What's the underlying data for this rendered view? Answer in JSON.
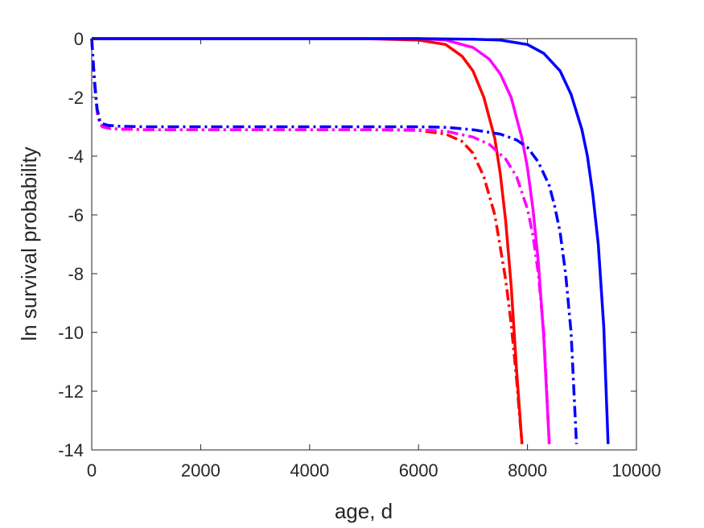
{
  "chart_data": {
    "type": "line",
    "title": "",
    "xlabel": "age, d",
    "ylabel": "ln survival probability",
    "xlim": [
      0,
      10000
    ],
    "ylim": [
      -14,
      0
    ],
    "xticks": [
      0,
      2000,
      4000,
      6000,
      8000,
      10000
    ],
    "xtick_labels": [
      "0",
      "2000",
      "4000",
      "6000",
      "8000",
      "10000"
    ],
    "yticks": [
      0,
      -2,
      -4,
      -6,
      -8,
      -10,
      -12,
      -14
    ],
    "ytick_labels": [
      "0",
      "-2",
      "-4",
      "-6",
      "-8",
      "-10",
      "-12",
      "-14"
    ],
    "grid": false,
    "legend": "none",
    "series": [
      {
        "color": "#ff0000",
        "style": "solid",
        "x": [
          0,
          1000,
          2000,
          3000,
          4000,
          5000,
          6000,
          6500,
          6800,
          7000,
          7200,
          7400,
          7500,
          7600,
          7700,
          7800,
          7900
        ],
        "y": [
          0,
          0,
          0,
          0,
          0,
          0,
          -0.05,
          -0.2,
          -0.6,
          -1.1,
          -2.0,
          -3.4,
          -4.6,
          -6.2,
          -8.4,
          -11.3,
          -13.8
        ]
      },
      {
        "color": "#ff00ff",
        "style": "solid",
        "x": [
          0,
          1000,
          2000,
          3000,
          4000,
          5000,
          6000,
          6500,
          7000,
          7300,
          7500,
          7700,
          7900,
          8000,
          8100,
          8200,
          8300,
          8400
        ],
        "y": [
          0,
          0,
          0,
          0,
          0,
          0,
          0,
          -0.05,
          -0.3,
          -0.7,
          -1.2,
          -2.0,
          -3.4,
          -4.4,
          -5.8,
          -7.6,
          -10.2,
          -13.8
        ]
      },
      {
        "color": "#0000ff",
        "style": "solid",
        "x": [
          0,
          1000,
          2000,
          3000,
          4000,
          5000,
          6000,
          7000,
          7500,
          8000,
          8300,
          8600,
          8800,
          9000,
          9100,
          9200,
          9300,
          9400,
          9480
        ],
        "y": [
          0,
          0,
          0,
          0,
          0,
          0,
          0,
          -0.02,
          -0.05,
          -0.2,
          -0.5,
          -1.1,
          -1.9,
          -3.1,
          -4.0,
          -5.3,
          -7.0,
          -9.8,
          -13.8
        ]
      },
      {
        "color": "#ff0000",
        "style": "dashdot",
        "x": [
          0,
          20,
          50,
          100,
          150,
          200,
          300,
          500,
          1000,
          2000,
          3000,
          4000,
          5000,
          6000,
          6500,
          6800,
          7000,
          7200,
          7400,
          7600,
          7700,
          7800,
          7850,
          7900
        ],
        "y": [
          0,
          -0.6,
          -1.5,
          -2.5,
          -2.9,
          -3.0,
          -3.05,
          -3.08,
          -3.1,
          -3.1,
          -3.1,
          -3.1,
          -3.1,
          -3.12,
          -3.25,
          -3.5,
          -3.9,
          -4.7,
          -6.0,
          -8.2,
          -9.7,
          -11.6,
          -12.7,
          -13.8
        ]
      },
      {
        "color": "#ff00ff",
        "style": "dashdot",
        "x": [
          0,
          20,
          50,
          100,
          150,
          200,
          300,
          500,
          1000,
          2000,
          3000,
          4000,
          5000,
          6000,
          6500,
          7000,
          7300,
          7600,
          7800,
          8000,
          8100,
          8200,
          8300,
          8400
        ],
        "y": [
          0,
          -0.6,
          -1.5,
          -2.5,
          -2.9,
          -3.0,
          -3.05,
          -3.08,
          -3.1,
          -3.1,
          -3.1,
          -3.1,
          -3.1,
          -3.1,
          -3.15,
          -3.35,
          -3.6,
          -4.1,
          -4.7,
          -5.8,
          -6.7,
          -8.0,
          -10.0,
          -13.8
        ]
      },
      {
        "color": "#0000ff",
        "style": "dashdot",
        "x": [
          0,
          20,
          50,
          100,
          150,
          200,
          300,
          500,
          1000,
          2000,
          3000,
          4000,
          5000,
          6000,
          6500,
          7000,
          7500,
          7800,
          8000,
          8200,
          8400,
          8500,
          8600,
          8700,
          8800,
          8900
        ],
        "y": [
          0,
          -0.6,
          -1.4,
          -2.4,
          -2.8,
          -2.9,
          -2.95,
          -2.98,
          -3.0,
          -3.0,
          -3.0,
          -3.0,
          -3.0,
          -3.0,
          -3.02,
          -3.1,
          -3.25,
          -3.45,
          -3.7,
          -4.2,
          -5.0,
          -5.7,
          -6.6,
          -8.0,
          -10.0,
          -13.8
        ]
      }
    ]
  }
}
